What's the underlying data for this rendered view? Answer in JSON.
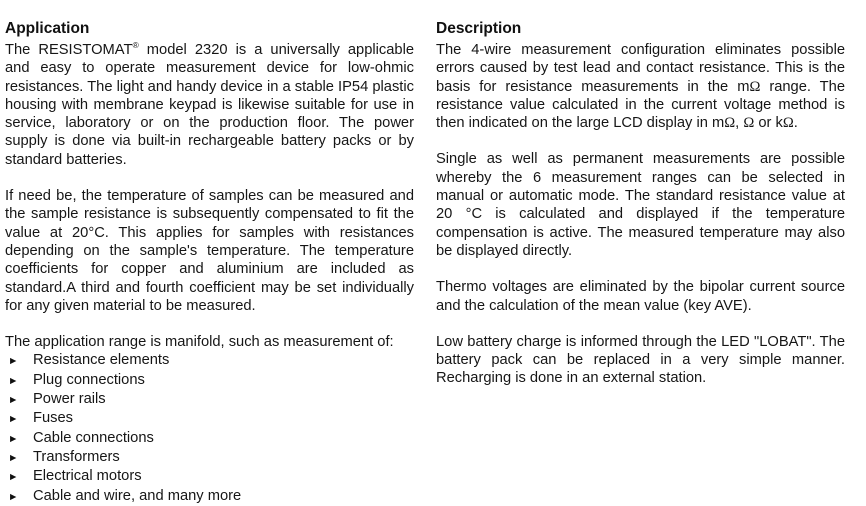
{
  "page": {
    "background": "#ffffff",
    "text_color": "#161616"
  },
  "columns": {
    "left": {
      "heading": "Application",
      "paragraphs": [
        "The RESISTOMAT® model 2320 is a universally applicable and easy to operate measurement device for low-ohmic resistances. The light and handy device in a stable IP54 plastic housing with membrane keypad is likewise suitable for use in service, laboratory or on the production floor. The power supply is done via built-in rechargeable battery packs or by standard batteries.",
        "If need be, the temperature of samples can be measured and the sample resistance is subsequently compensated to fit the value at 20°C. This applies for samples with resistances depending on the sample's temperature. The temperature coefficients for copper and aluminium are included as standard.A third and fourth coefficient may be set individually for any given material to be measured.",
        "The application range is manifold, such as measurement of:"
      ],
      "bullet_char": "►",
      "bullets": [
        "Resistance elements",
        "Plug connections",
        "Power rails",
        "Fuses",
        "Cable connections",
        "Transformers",
        "Electrical motors",
        "Cable and wire, and many more"
      ]
    },
    "right": {
      "heading": "Description",
      "paragraphs": [
        "The 4-wire measurement configuration eliminates possible errors caused by test lead and contact resistance. This is the basis for resistance measurements in the mΩ range. The resistance value calculated in the current voltage method is then indicated on the large LCD display in mΩ, Ω or kΩ.",
        "Single as well as permanent measurements are possible whereby the 6 measurement ranges can be selected in manual or automatic mode. The standard resistance value at 20 °C is calculated and displayed if the temperature compensation is active. The measured temperature may also be displayed directly.",
        "Thermo voltages are eliminated by the bipolar current source and the calculation of the mean value (key AVE).",
        "Low battery charge is informed through the LED \"LOBAT\". The battery pack can be replaced in a very simple manner. Recharging is done in an external station."
      ]
    }
  }
}
